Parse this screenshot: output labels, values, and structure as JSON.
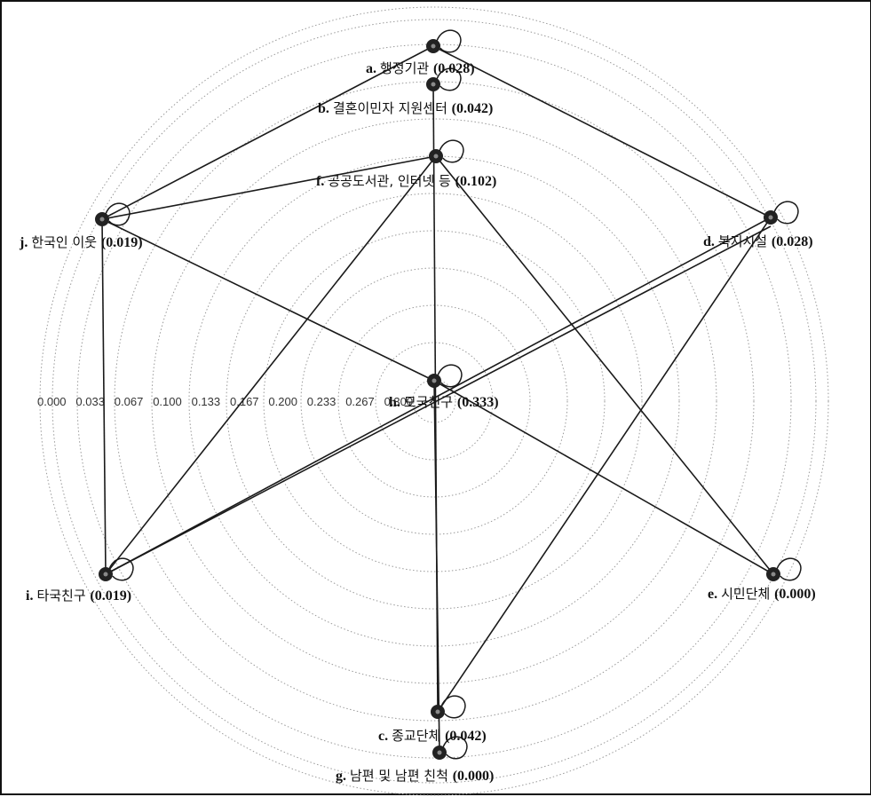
{
  "colors": {
    "edge": "#1a1a1a",
    "ring": "#9a9a9a",
    "node": "#222222",
    "node_center": "#8a8a8a",
    "text": "#111111"
  },
  "rings": {
    "labels": [
      "0.000",
      "0.033",
      "0.067",
      "0.100",
      "0.133",
      "0.167",
      "0.200",
      "0.233",
      "0.267",
      "0.300"
    ]
  },
  "nodes": [
    {
      "id": "a",
      "letter": "a.",
      "name": "행정기관",
      "value": "(0.028)",
      "centrality": 0.028
    },
    {
      "id": "b",
      "letter": "b.",
      "name": "결혼이민자 지원센터",
      "value": "(0.042)",
      "centrality": 0.042
    },
    {
      "id": "c",
      "letter": "c.",
      "name": "종교단체",
      "value": "(0.042)",
      "centrality": 0.042
    },
    {
      "id": "d",
      "letter": "d.",
      "name": "복지시설",
      "value": "(0.028)",
      "centrality": 0.028
    },
    {
      "id": "e",
      "letter": "e.",
      "name": "시민단체",
      "value": "(0.000)",
      "centrality": 0.0
    },
    {
      "id": "f",
      "letter": "f.",
      "name": "공공도서관, 인터넷 등",
      "value": "(0.102)",
      "centrality": 0.102
    },
    {
      "id": "g",
      "letter": "g.",
      "name": "남편 및 남편 친척",
      "value": "(0.000)",
      "centrality": 0.0
    },
    {
      "id": "h",
      "letter": "h.",
      "name": "모국친구",
      "value": "(0.333)",
      "centrality": 0.333
    },
    {
      "id": "i",
      "letter": "i.",
      "name": "타국친구",
      "value": "(0.019)",
      "centrality": 0.019
    },
    {
      "id": "j",
      "letter": "j.",
      "name": "한국인 이웃",
      "value": "(0.019)",
      "centrality": 0.019
    }
  ],
  "edges": [
    [
      "a",
      "j"
    ],
    [
      "a",
      "d"
    ],
    [
      "f",
      "j"
    ],
    [
      "b",
      "c"
    ],
    [
      "f",
      "i"
    ],
    [
      "f",
      "e"
    ],
    [
      "j",
      "h"
    ],
    [
      "j",
      "i"
    ],
    [
      "h",
      "e"
    ],
    [
      "h",
      "g"
    ],
    [
      "i",
      "d"
    ],
    [
      "i",
      "d2"
    ],
    [
      "d",
      "c"
    ]
  ],
  "self_loops": [
    "a",
    "b",
    "f",
    "j",
    "d",
    "h",
    "i",
    "e",
    "c",
    "g"
  ]
}
